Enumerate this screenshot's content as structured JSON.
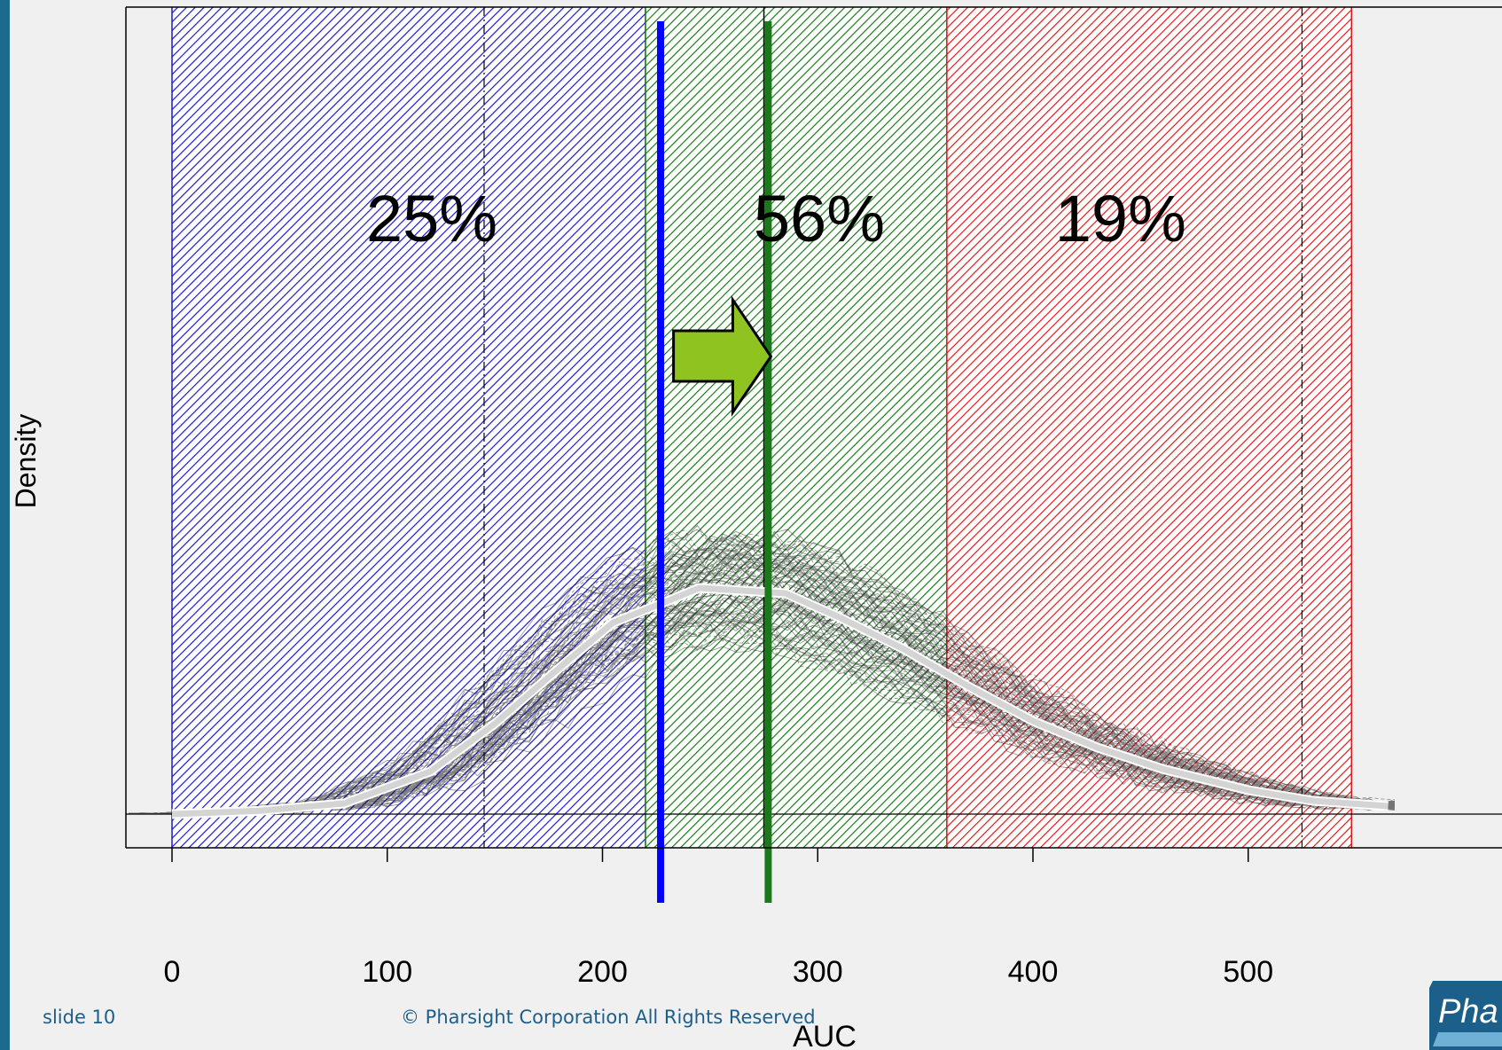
{
  "footer": {
    "slide": "slide 10",
    "copyright": "© Pharsight Corporation All Rights Reserved"
  },
  "logo": {
    "text": "Pha"
  },
  "colors": {
    "low_region": "#1a1acc",
    "target_region": "#1a7a1a",
    "high_region": "#dd1a1a",
    "mean_curve": "#d4d4d4",
    "arrow_fill": "#8fc31f",
    "blue_marker": "#0000ff",
    "green_marker": "#1a7a1a"
  },
  "chart_data": {
    "type": "area",
    "xlabel": "AUC",
    "ylabel": "Density",
    "xlim": [
      -22,
      565
    ],
    "x_ticks": [
      0,
      100,
      200,
      300,
      400,
      500
    ],
    "regions": [
      {
        "from": 0,
        "to": 220,
        "color": "#1a1acc",
        "label": "25%",
        "label_x": 110
      },
      {
        "from": 220,
        "to": 360,
        "color": "#1a7a1a",
        "label": "56%",
        "label_x": 290
      },
      {
        "from": 360,
        "to": 548,
        "color": "#dd1a1a",
        "label": "19%",
        "label_x": 430
      }
    ],
    "dashed_lines_x": [
      145,
      525
    ],
    "axis_line_x": 275,
    "markers": [
      {
        "x": 227,
        "color": "#0000ff"
      },
      {
        "x": 277,
        "color": "#1a7a1a"
      }
    ],
    "arrow": {
      "from": 233,
      "to": 270,
      "color": "#8fc31f"
    },
    "mean_density": {
      "x": [
        0,
        40,
        80,
        120,
        150,
        180,
        205,
        230,
        245,
        265,
        285,
        310,
        340,
        370,
        400,
        430,
        460,
        500,
        530,
        565
      ],
      "y": [
        0.0,
        0.6,
        2.0,
        8.0,
        17.0,
        27.5,
        36.0,
        40.0,
        42.5,
        42.0,
        41.5,
        37.0,
        31.0,
        24.0,
        17.5,
        12.5,
        8.5,
        4.5,
        2.5,
        1.5
      ]
    },
    "ylim": [
      -6,
      78
    ]
  }
}
